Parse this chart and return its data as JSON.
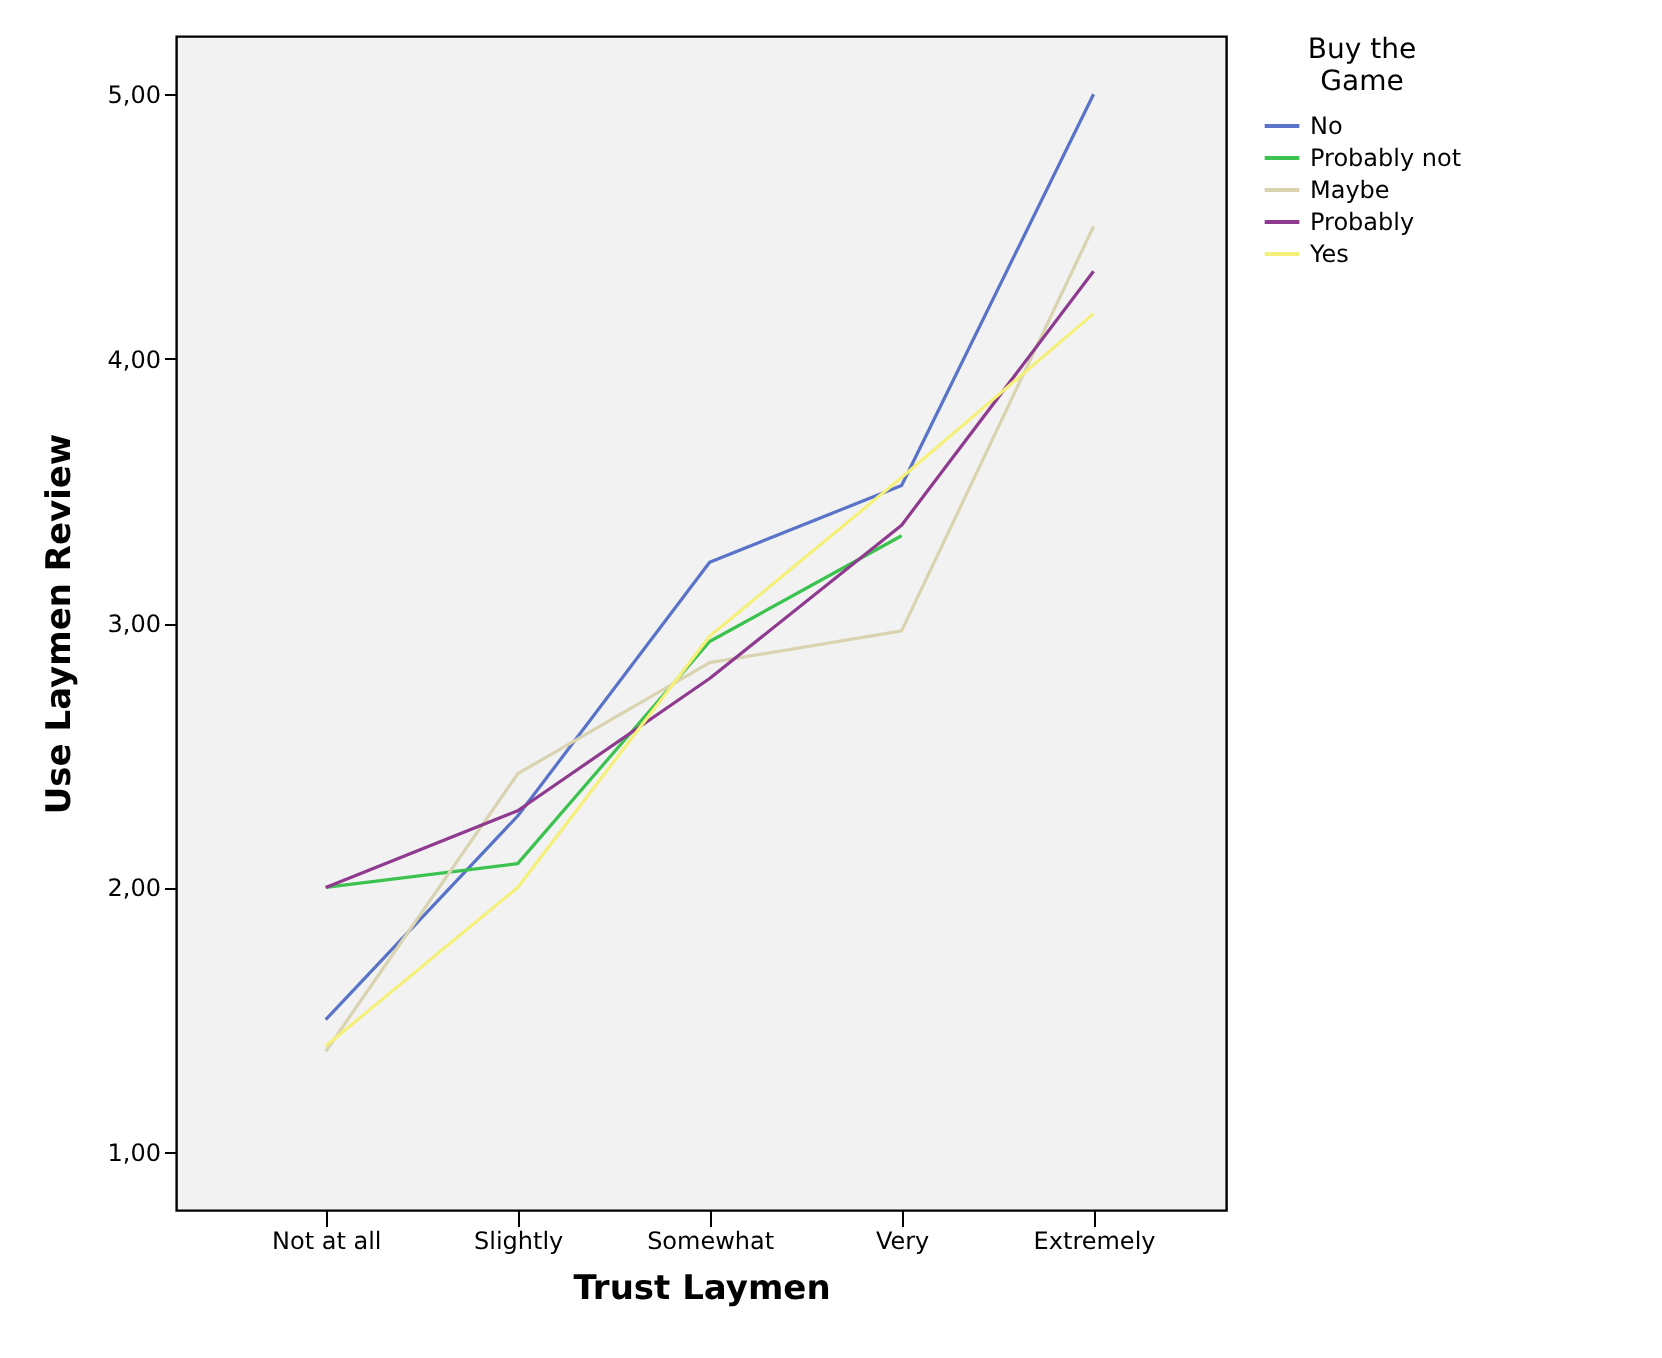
{
  "chart_data": {
    "type": "line",
    "xlabel": "Trust Laymen",
    "ylabel": "Use Laymen Review",
    "legend_title": "Buy the Game",
    "categories": [
      "Not at all",
      "Slightly",
      "Somewhat",
      "Very",
      "Extremely"
    ],
    "series": [
      {
        "name": "No",
        "color": "#5873c7",
        "values": [
          1.5,
          2.27,
          3.23,
          3.52,
          5.0
        ]
      },
      {
        "name": "Probably not",
        "color": "#3cc24f",
        "values": [
          2.0,
          2.09,
          2.93,
          3.33,
          null
        ]
      },
      {
        "name": "Maybe",
        "color": "#d9d3b0",
        "values": [
          1.38,
          2.43,
          2.85,
          2.97,
          4.5
        ]
      },
      {
        "name": "Probably",
        "color": "#8e3a8f",
        "values": [
          2.0,
          2.29,
          2.79,
          3.37,
          4.33
        ]
      },
      {
        "name": "Yes",
        "color": "#f5f07a",
        "values": [
          1.4,
          2.0,
          2.95,
          3.55,
          4.17
        ]
      }
    ],
    "ylim": [
      0.78,
      5.22
    ],
    "yticks": [
      {
        "value": 1,
        "label": "1,00"
      },
      {
        "value": 2,
        "label": "2,00"
      },
      {
        "value": 3,
        "label": "3,00"
      },
      {
        "value": 4,
        "label": "4,00"
      },
      {
        "value": 5,
        "label": "5,00"
      }
    ],
    "grid": false,
    "legend": "top right",
    "marker": "none",
    "line_style": "solid"
  }
}
